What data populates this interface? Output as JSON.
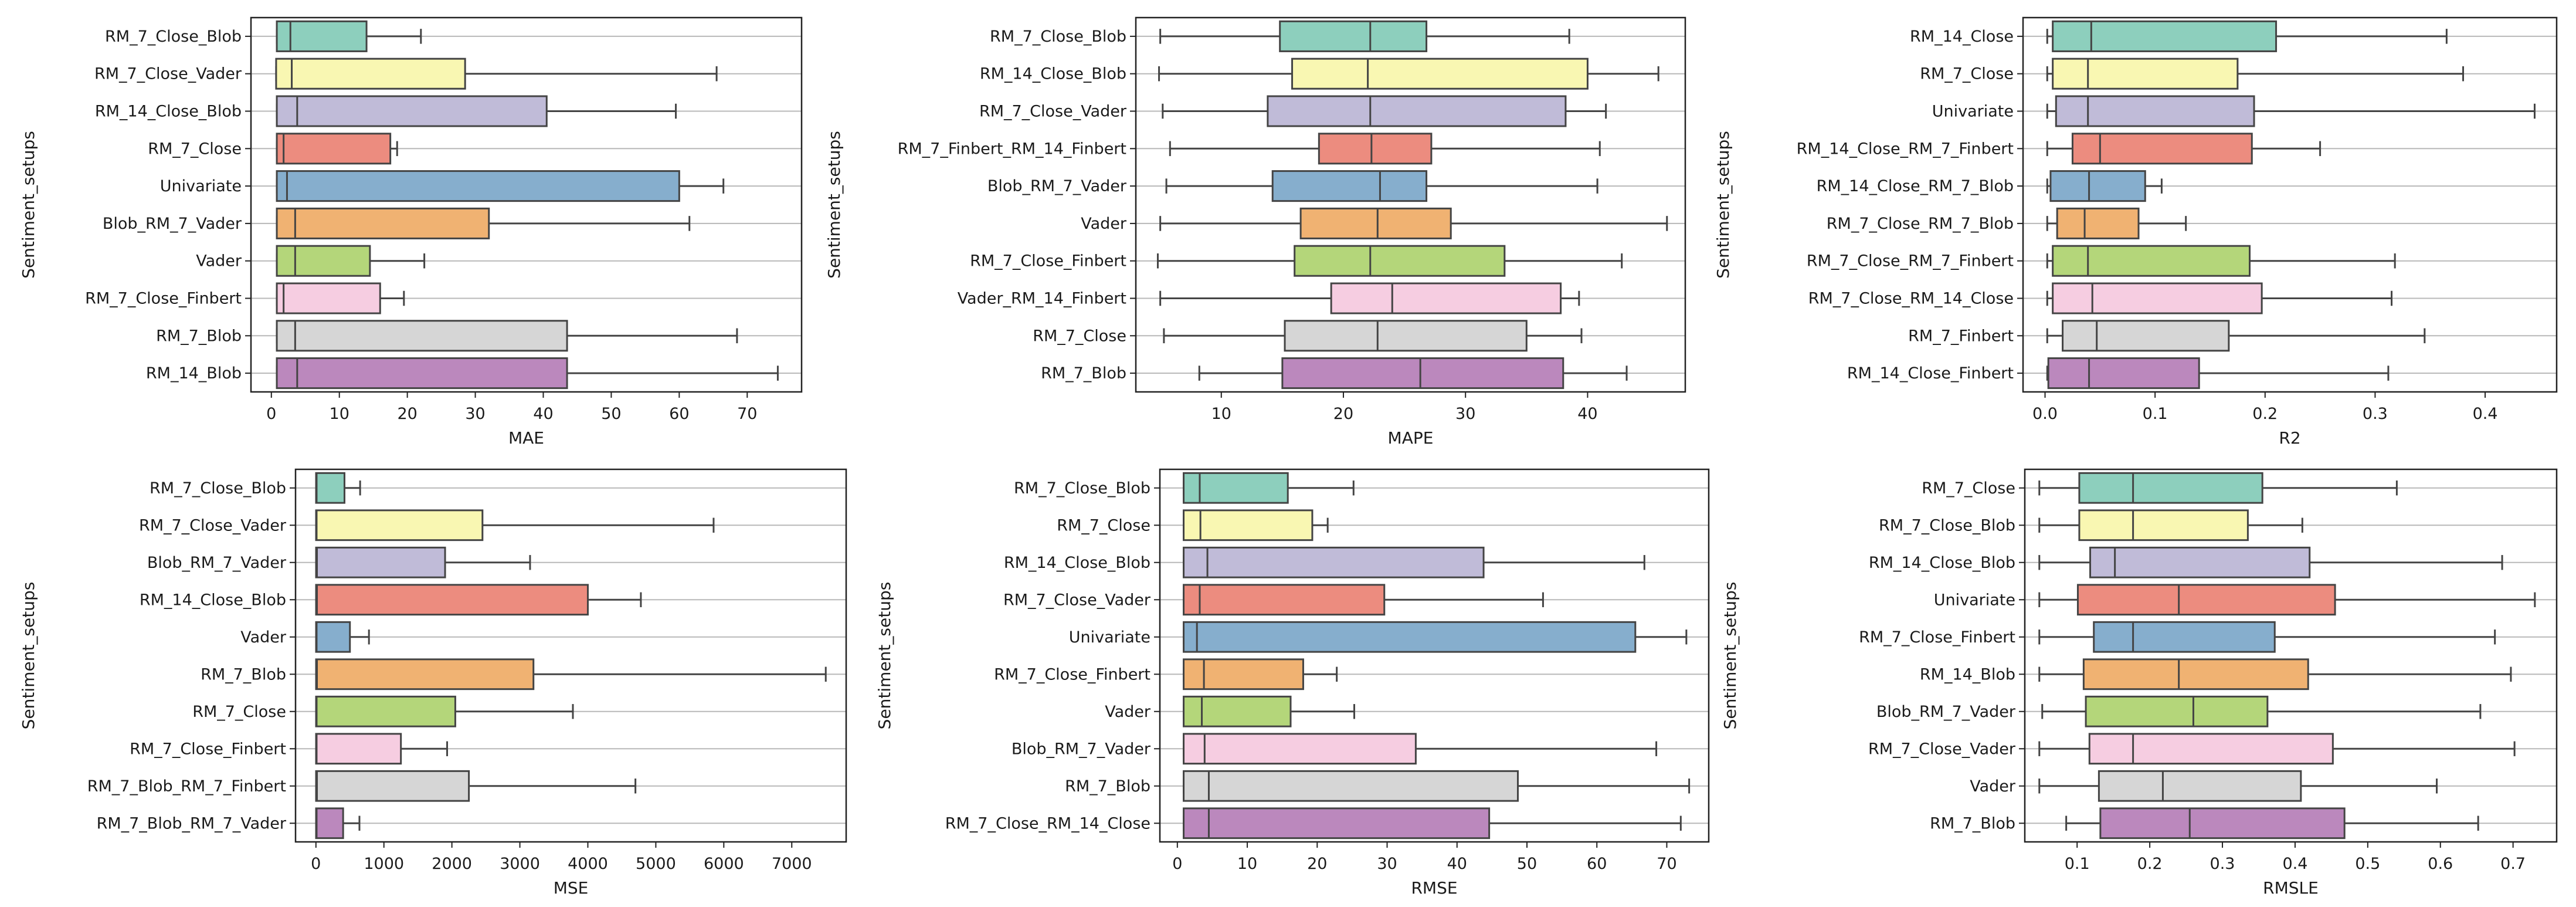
{
  "figure": {
    "palette": [
      "#8dcfbd",
      "#f9f7b2",
      "#c0bbd8",
      "#ec8c7f",
      "#86aecd",
      "#f0b272",
      "#b4d67a",
      "#f6cde1",
      "#d6d6d6",
      "#bb88bd"
    ],
    "box_edge_color": "#444444",
    "grid_color": "#b8b8b8",
    "frame_color": "#222222"
  },
  "chart_data": [
    {
      "type": "box",
      "orientation": "horizontal",
      "xlabel": "MAE",
      "ylabel": "Sentiment_setups",
      "xlim": [
        -3,
        78
      ],
      "xticks": [
        0,
        10,
        20,
        30,
        40,
        50,
        60,
        70
      ],
      "grid": "horizontal",
      "categories": [
        "RM_7_Close_Blob",
        "RM_7_Close_Vader",
        "RM_14_Close_Blob",
        "RM_7_Close",
        "Univariate",
        "Blob_RM_7_Vader",
        "Vader",
        "RM_7_Close_Finbert",
        "RM_7_Blob",
        "RM_14_Blob"
      ],
      "boxes": [
        {
          "whislo": 0.8,
          "q1": 0.8,
          "med": 2.8,
          "q3": 14,
          "whishi": 22
        },
        {
          "whislo": 0.7,
          "q1": 0.7,
          "med": 3,
          "q3": 28.5,
          "whishi": 65.5
        },
        {
          "whislo": 0.8,
          "q1": 0.8,
          "med": 3.8,
          "q3": 40.5,
          "whishi": 59.5
        },
        {
          "whislo": 0.8,
          "q1": 0.8,
          "med": 1.8,
          "q3": 17.5,
          "whishi": 18.5
        },
        {
          "whislo": 0.8,
          "q1": 0.8,
          "med": 2.3,
          "q3": 60,
          "whishi": 66.5
        },
        {
          "whislo": 0.8,
          "q1": 0.8,
          "med": 3.5,
          "q3": 32,
          "whishi": 61.5
        },
        {
          "whislo": 0.8,
          "q1": 0.8,
          "med": 3.5,
          "q3": 14.5,
          "whishi": 22.5
        },
        {
          "whislo": 0.8,
          "q1": 0.8,
          "med": 1.8,
          "q3": 16,
          "whishi": 19.5
        },
        {
          "whislo": 0.8,
          "q1": 0.8,
          "med": 3.5,
          "q3": 43.5,
          "whishi": 68.5
        },
        {
          "whislo": 0.8,
          "q1": 0.8,
          "med": 3.8,
          "q3": 43.5,
          "whishi": 74.5
        }
      ]
    },
    {
      "type": "box",
      "orientation": "horizontal",
      "xlabel": "MAPE",
      "ylabel": "Sentiment_setups",
      "xlim": [
        3,
        48
      ],
      "xticks": [
        10,
        20,
        30,
        40
      ],
      "grid": "horizontal",
      "categories": [
        "RM_7_Close_Blob",
        "RM_14_Close_Blob",
        "RM_7_Close_Vader",
        "RM_7_Finbert_RM_14_Finbert",
        "Blob_RM_7_Vader",
        "Vader",
        "RM_7_Close_Finbert",
        "Vader_RM_14_Finbert",
        "RM_7_Close",
        "RM_7_Blob"
      ],
      "boxes": [
        {
          "whislo": 5,
          "q1": 14.8,
          "med": 22.2,
          "q3": 26.8,
          "whishi": 38.5
        },
        {
          "whislo": 4.9,
          "q1": 15.8,
          "med": 22,
          "q3": 40,
          "whishi": 45.8
        },
        {
          "whislo": 5.2,
          "q1": 13.8,
          "med": 22.2,
          "q3": 38.2,
          "whishi": 41.5
        },
        {
          "whislo": 5.8,
          "q1": 18,
          "med": 22.3,
          "q3": 27.2,
          "whishi": 41
        },
        {
          "whislo": 5.5,
          "q1": 14.2,
          "med": 23,
          "q3": 26.8,
          "whishi": 40.8
        },
        {
          "whislo": 5,
          "q1": 16.5,
          "med": 22.8,
          "q3": 28.8,
          "whishi": 46.5
        },
        {
          "whislo": 4.8,
          "q1": 16,
          "med": 22.2,
          "q3": 33.2,
          "whishi": 42.8
        },
        {
          "whislo": 5,
          "q1": 19,
          "med": 24,
          "q3": 37.8,
          "whishi": 39.3
        },
        {
          "whislo": 5.3,
          "q1": 15.2,
          "med": 22.8,
          "q3": 35,
          "whishi": 39.5
        },
        {
          "whislo": 8.2,
          "q1": 15,
          "med": 26.3,
          "q3": 38,
          "whishi": 43.2
        }
      ]
    },
    {
      "type": "box",
      "orientation": "horizontal",
      "xlabel": "R2",
      "ylabel": "Sentiment_setups",
      "xlim": [
        -0.02,
        0.465
      ],
      "xticks": [
        0.0,
        0.1,
        0.2,
        0.3,
        0.4
      ],
      "grid": "horizontal",
      "categories": [
        "RM_14_Close",
        "RM_7_Close",
        "Univariate",
        "RM_14_Close_RM_7_Finbert",
        "RM_14_Close_RM_7_Blob",
        "RM_7_Close_RM_7_Blob",
        "RM_7_Close_RM_7_Finbert",
        "RM_7_Close_RM_14_Close",
        "RM_7_Finbert",
        "RM_14_Close_Finbert"
      ],
      "boxes": [
        {
          "whislo": 0.002,
          "q1": 0.007,
          "med": 0.042,
          "q3": 0.21,
          "whishi": 0.365
        },
        {
          "whislo": 0.002,
          "q1": 0.007,
          "med": 0.039,
          "q3": 0.175,
          "whishi": 0.38
        },
        {
          "whislo": 0.002,
          "q1": 0.01,
          "med": 0.039,
          "q3": 0.19,
          "whishi": 0.445
        },
        {
          "whislo": 0.002,
          "q1": 0.025,
          "med": 0.05,
          "q3": 0.188,
          "whishi": 0.25
        },
        {
          "whislo": 0.002,
          "q1": 0.005,
          "med": 0.04,
          "q3": 0.091,
          "whishi": 0.106
        },
        {
          "whislo": 0.002,
          "q1": 0.011,
          "med": 0.036,
          "q3": 0.085,
          "whishi": 0.128
        },
        {
          "whislo": 0.002,
          "q1": 0.007,
          "med": 0.039,
          "q3": 0.186,
          "whishi": 0.318
        },
        {
          "whislo": 0.002,
          "q1": 0.007,
          "med": 0.043,
          "q3": 0.197,
          "whishi": 0.315
        },
        {
          "whislo": 0.002,
          "q1": 0.016,
          "med": 0.047,
          "q3": 0.167,
          "whishi": 0.345
        },
        {
          "whislo": 0.002,
          "q1": 0.003,
          "med": 0.04,
          "q3": 0.14,
          "whishi": 0.312
        }
      ]
    },
    {
      "type": "box",
      "orientation": "horizontal",
      "xlabel": "MSE",
      "ylabel": "Sentiment_setups",
      "xlim": [
        -300,
        7800
      ],
      "xticks": [
        0,
        1000,
        2000,
        3000,
        4000,
        5000,
        6000,
        7000
      ],
      "grid": "horizontal",
      "categories": [
        "RM_7_Close_Blob",
        "RM_7_Close_Vader",
        "Blob_RM_7_Vader",
        "RM_14_Close_Blob",
        "Vader",
        "RM_7_Blob",
        "RM_7_Close",
        "RM_7_Close_Finbert",
        "RM_7_Blob_RM_7_Finbert",
        "RM_7_Blob_RM_7_Vader"
      ],
      "boxes": [
        {
          "whislo": 2,
          "q1": 2,
          "med": 10,
          "q3": 420,
          "whishi": 650
        },
        {
          "whislo": 2,
          "q1": 2,
          "med": 10,
          "q3": 2450,
          "whishi": 5850
        },
        {
          "whislo": 2,
          "q1": 2,
          "med": 15,
          "q3": 1900,
          "whishi": 3150
        },
        {
          "whislo": 2,
          "q1": 2,
          "med": 15,
          "q3": 4000,
          "whishi": 4780
        },
        {
          "whislo": 2,
          "q1": 2,
          "med": 10,
          "q3": 500,
          "whishi": 780
        },
        {
          "whislo": 2,
          "q1": 2,
          "med": 15,
          "q3": 3200,
          "whishi": 7500
        },
        {
          "whislo": 2,
          "q1": 2,
          "med": 10,
          "q3": 2050,
          "whishi": 3780
        },
        {
          "whislo": 2,
          "q1": 2,
          "med": 10,
          "q3": 1250,
          "whishi": 1930
        },
        {
          "whislo": 2,
          "q1": 2,
          "med": 15,
          "q3": 2250,
          "whishi": 4700
        },
        {
          "whislo": 2,
          "q1": 2,
          "med": 10,
          "q3": 400,
          "whishi": 640
        }
      ]
    },
    {
      "type": "box",
      "orientation": "horizontal",
      "xlabel": "RMSE",
      "ylabel": "Sentiment_setups",
      "xlim": [
        -2.5,
        76
      ],
      "xticks": [
        0,
        10,
        20,
        30,
        40,
        50,
        60,
        70
      ],
      "grid": "horizontal",
      "categories": [
        "RM_7_Close_Blob",
        "RM_7_Close",
        "RM_14_Close_Blob",
        "RM_7_Close_Vader",
        "Univariate",
        "RM_7_Close_Finbert",
        "Vader",
        "Blob_RM_7_Vader",
        "RM_7_Blob",
        "RM_7_Close_RM_14_Close"
      ],
      "boxes": [
        {
          "whislo": 0.9,
          "q1": 0.9,
          "med": 3.2,
          "q3": 15.8,
          "whishi": 25.2
        },
        {
          "whislo": 0.9,
          "q1": 0.9,
          "med": 3.3,
          "q3": 19.3,
          "whishi": 21.5
        },
        {
          "whislo": 0.9,
          "q1": 0.9,
          "med": 4.3,
          "q3": 43.8,
          "whishi": 66.8
        },
        {
          "whislo": 0.9,
          "q1": 0.9,
          "med": 3.2,
          "q3": 29.6,
          "whishi": 52.3
        },
        {
          "whislo": 0.9,
          "q1": 0.9,
          "med": 2.8,
          "q3": 65.5,
          "whishi": 72.8
        },
        {
          "whislo": 0.9,
          "q1": 0.9,
          "med": 3.8,
          "q3": 18,
          "whishi": 22.8
        },
        {
          "whislo": 0.9,
          "q1": 0.9,
          "med": 3.5,
          "q3": 16.2,
          "whishi": 25.3
        },
        {
          "whislo": 0.9,
          "q1": 0.9,
          "med": 3.9,
          "q3": 34.1,
          "whishi": 68.5
        },
        {
          "whislo": 0.9,
          "q1": 0.9,
          "med": 4.5,
          "q3": 48.7,
          "whishi": 73.2
        },
        {
          "whislo": 0.9,
          "q1": 0.9,
          "med": 4.5,
          "q3": 44.6,
          "whishi": 72
        }
      ]
    },
    {
      "type": "box",
      "orientation": "horizontal",
      "xlabel": "RMSLE",
      "ylabel": "Sentiment_setups",
      "xlim": [
        0.028,
        0.76
      ],
      "xticks": [
        0.1,
        0.2,
        0.3,
        0.4,
        0.5,
        0.6,
        0.7
      ],
      "grid": "horizontal",
      "categories": [
        "RM_7_Close",
        "RM_7_Close_Blob",
        "RM_14_Close_Blob",
        "Univariate",
        "RM_7_Close_Finbert",
        "RM_14_Blob",
        "Blob_RM_7_Vader",
        "RM_7_Close_Vader",
        "Vader",
        "RM_7_Blob"
      ],
      "boxes": [
        {
          "whislo": 0.048,
          "q1": 0.103,
          "med": 0.177,
          "q3": 0.355,
          "whishi": 0.54
        },
        {
          "whislo": 0.048,
          "q1": 0.103,
          "med": 0.177,
          "q3": 0.335,
          "whishi": 0.41
        },
        {
          "whislo": 0.048,
          "q1": 0.118,
          "med": 0.152,
          "q3": 0.42,
          "whishi": 0.685
        },
        {
          "whislo": 0.048,
          "q1": 0.101,
          "med": 0.24,
          "q3": 0.455,
          "whishi": 0.73
        },
        {
          "whislo": 0.048,
          "q1": 0.123,
          "med": 0.177,
          "q3": 0.372,
          "whishi": 0.675
        },
        {
          "whislo": 0.048,
          "q1": 0.109,
          "med": 0.24,
          "q3": 0.418,
          "whishi": 0.697
        },
        {
          "whislo": 0.052,
          "q1": 0.112,
          "med": 0.26,
          "q3": 0.362,
          "whishi": 0.655
        },
        {
          "whislo": 0.048,
          "q1": 0.117,
          "med": 0.177,
          "q3": 0.452,
          "whishi": 0.702
        },
        {
          "whislo": 0.048,
          "q1": 0.13,
          "med": 0.218,
          "q3": 0.408,
          "whishi": 0.595
        },
        {
          "whislo": 0.085,
          "q1": 0.132,
          "med": 0.255,
          "q3": 0.468,
          "whishi": 0.652
        }
      ]
    }
  ]
}
